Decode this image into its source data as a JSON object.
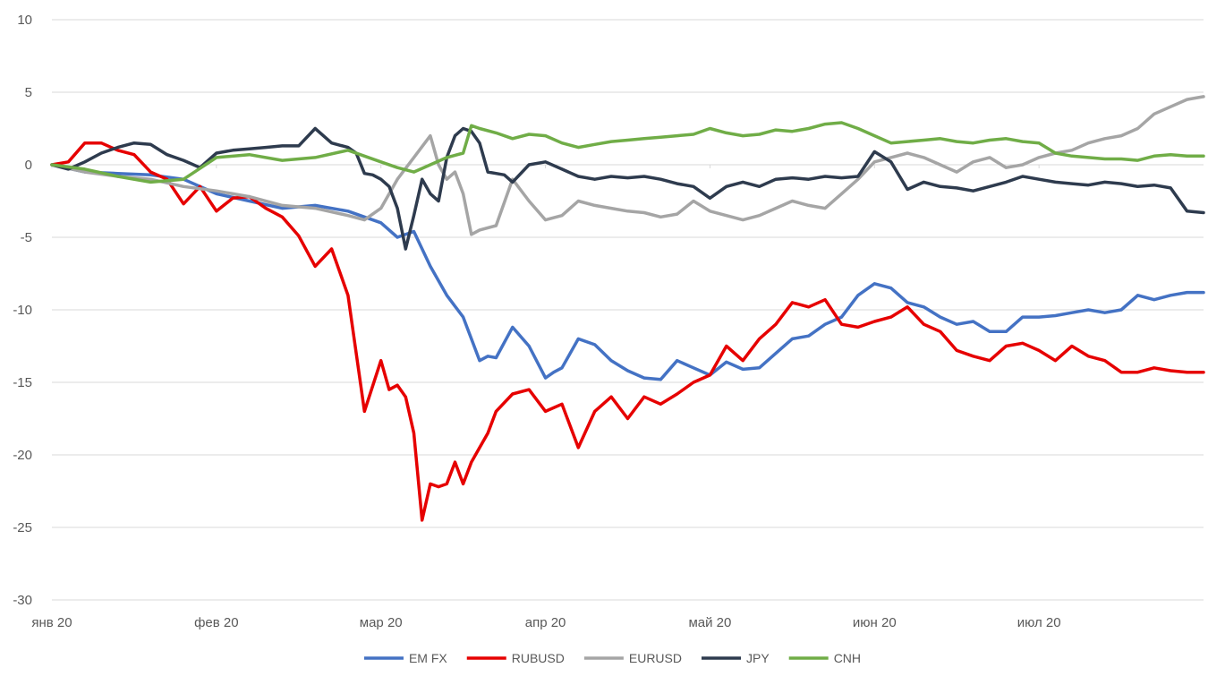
{
  "chart_data": {
    "type": "line",
    "title": "",
    "xlabel": "",
    "ylabel": "",
    "ylim": [
      -30,
      10
    ],
    "yticks": [
      10,
      5,
      0,
      -5,
      -10,
      -15,
      -20,
      -25,
      -30
    ],
    "y_tick_labels": [
      "10",
      "5",
      "0",
      "-5",
      "-10",
      "-15",
      "-20",
      "-25",
      "-30"
    ],
    "x_tick_labels": [
      "янв 20",
      "фев 20",
      "мар 20",
      "апр 20",
      "май 20",
      "июн 20",
      "июл 20"
    ],
    "x_tick_positions": [
      0,
      1,
      2,
      3,
      4,
      5,
      6
    ],
    "x_range": [
      0,
      7.0
    ],
    "grid": "horizontal",
    "legend_position": "bottom",
    "series": [
      {
        "name": "EM FX",
        "color": "#4472C4",
        "x": [
          0,
          0.2,
          0.4,
          0.6,
          0.8,
          1.0,
          1.2,
          1.4,
          1.6,
          1.8,
          2.0,
          2.1,
          2.2,
          2.3,
          2.4,
          2.5,
          2.6,
          2.65,
          2.7,
          2.8,
          2.9,
          3.0,
          3.05,
          3.1,
          3.2,
          3.3,
          3.4,
          3.5,
          3.6,
          3.7,
          3.8,
          3.9,
          4.0,
          4.1,
          4.2,
          4.3,
          4.4,
          4.5,
          4.6,
          4.7,
          4.8,
          4.9,
          5.0,
          5.1,
          5.2,
          5.3,
          5.4,
          5.5,
          5.6,
          5.7,
          5.8,
          5.9,
          6.0,
          6.1,
          6.2,
          6.3,
          6.4,
          6.5,
          6.6,
          6.7,
          6.8,
          6.9,
          7.0
        ],
        "y": [
          0,
          -0.5,
          -0.6,
          -0.7,
          -1.0,
          -2.0,
          -2.5,
          -3.0,
          -2.8,
          -3.2,
          -4.0,
          -5.0,
          -4.6,
          -7.0,
          -9.0,
          -10.5,
          -13.5,
          -13.2,
          -13.3,
          -11.2,
          -12.5,
          -14.7,
          -14.3,
          -14.0,
          -12.0,
          -12.4,
          -13.5,
          -14.2,
          -14.7,
          -14.8,
          -13.5,
          -14.0,
          -14.5,
          -13.6,
          -14.1,
          -14.0,
          -13.0,
          -12.0,
          -11.8,
          -11.0,
          -10.5,
          -9.0,
          -8.2,
          -8.5,
          -9.5,
          -9.8,
          -10.5,
          -11.0,
          -10.8,
          -11.5,
          -11.5,
          -10.5,
          -10.5,
          -10.4,
          -10.2,
          -10.0,
          -10.2,
          -10.0,
          -9.0,
          -9.3,
          -9.0,
          -8.8,
          -8.8
        ]
      },
      {
        "name": "RUBUSD",
        "color": "#E60000",
        "x": [
          0,
          0.1,
          0.2,
          0.3,
          0.4,
          0.5,
          0.6,
          0.7,
          0.8,
          0.9,
          1.0,
          1.1,
          1.2,
          1.3,
          1.4,
          1.5,
          1.6,
          1.7,
          1.8,
          1.9,
          2.0,
          2.05,
          2.1,
          2.15,
          2.2,
          2.25,
          2.3,
          2.35,
          2.4,
          2.45,
          2.5,
          2.55,
          2.6,
          2.65,
          2.7,
          2.8,
          2.9,
          3.0,
          3.1,
          3.2,
          3.3,
          3.4,
          3.5,
          3.6,
          3.7,
          3.8,
          3.9,
          4.0,
          4.1,
          4.2,
          4.3,
          4.4,
          4.5,
          4.6,
          4.7,
          4.8,
          4.9,
          5.0,
          5.1,
          5.2,
          5.3,
          5.4,
          5.5,
          5.6,
          5.7,
          5.8,
          5.9,
          6.0,
          6.1,
          6.2,
          6.3,
          6.4,
          6.5,
          6.6,
          6.7,
          6.8,
          6.9,
          7.0
        ],
        "y": [
          0,
          0.2,
          1.5,
          1.5,
          1.0,
          0.7,
          -0.5,
          -1.0,
          -2.7,
          -1.5,
          -3.2,
          -2.3,
          -2.2,
          -3.0,
          -3.6,
          -4.9,
          -7.0,
          -5.8,
          -9.0,
          -17.0,
          -13.5,
          -15.5,
          -15.2,
          -16.0,
          -18.5,
          -24.5,
          -22.0,
          -22.2,
          -22.0,
          -20.5,
          -22.0,
          -20.5,
          -19.5,
          -18.5,
          -17.0,
          -15.8,
          -15.5,
          -17.0,
          -16.5,
          -19.5,
          -17.0,
          -16.0,
          -17.5,
          -16.0,
          -16.5,
          -15.8,
          -15.0,
          -14.5,
          -12.5,
          -13.5,
          -12.0,
          -11.0,
          -9.5,
          -9.8,
          -9.3,
          -11.0,
          -11.2,
          -10.8,
          -10.5,
          -9.8,
          -11.0,
          -11.5,
          -12.8,
          -13.2,
          -13.5,
          -12.5,
          -12.3,
          -12.8,
          -13.5,
          -12.5,
          -13.2,
          -13.5,
          -14.3,
          -14.3,
          -14.0,
          -14.2,
          -14.3,
          -14.3
        ]
      },
      {
        "name": "EURUSD",
        "color": "#A5A5A5",
        "x": [
          0,
          0.2,
          0.4,
          0.6,
          0.8,
          1.0,
          1.2,
          1.4,
          1.6,
          1.8,
          1.9,
          2.0,
          2.1,
          2.2,
          2.3,
          2.35,
          2.4,
          2.45,
          2.5,
          2.55,
          2.6,
          2.7,
          2.8,
          2.9,
          3.0,
          3.1,
          3.2,
          3.3,
          3.4,
          3.5,
          3.6,
          3.7,
          3.8,
          3.9,
          4.0,
          4.1,
          4.2,
          4.3,
          4.4,
          4.5,
          4.6,
          4.7,
          4.8,
          4.9,
          5.0,
          5.1,
          5.2,
          5.3,
          5.4,
          5.5,
          5.6,
          5.7,
          5.8,
          5.9,
          6.0,
          6.1,
          6.2,
          6.3,
          6.4,
          6.5,
          6.6,
          6.7,
          6.8,
          6.9,
          7.0
        ],
        "y": [
          0,
          -0.5,
          -0.8,
          -1.0,
          -1.5,
          -1.8,
          -2.2,
          -2.8,
          -3.0,
          -3.5,
          -3.8,
          -3.0,
          -1.0,
          0.5,
          2.0,
          0.0,
          -1.0,
          -0.5,
          -2.0,
          -4.8,
          -4.5,
          -4.2,
          -1.0,
          -2.5,
          -3.8,
          -3.5,
          -2.5,
          -2.8,
          -3.0,
          -3.2,
          -3.3,
          -3.6,
          -3.4,
          -2.5,
          -3.2,
          -3.5,
          -3.8,
          -3.5,
          -3.0,
          -2.5,
          -2.8,
          -3.0,
          -2.0,
          -1.0,
          0.2,
          0.5,
          0.8,
          0.5,
          0.0,
          -0.5,
          0.2,
          0.5,
          -0.2,
          0.0,
          0.5,
          0.8,
          1.0,
          1.5,
          1.8,
          2.0,
          2.5,
          3.5,
          4.0,
          4.5,
          4.7
        ]
      },
      {
        "name": "JPY",
        "color": "#2E3B4E",
        "x": [
          0,
          0.1,
          0.2,
          0.3,
          0.4,
          0.5,
          0.6,
          0.7,
          0.8,
          0.9,
          1.0,
          1.1,
          1.2,
          1.3,
          1.4,
          1.5,
          1.6,
          1.7,
          1.8,
          1.85,
          1.9,
          1.95,
          2.0,
          2.05,
          2.1,
          2.15,
          2.2,
          2.25,
          2.3,
          2.35,
          2.4,
          2.45,
          2.5,
          2.55,
          2.6,
          2.65,
          2.7,
          2.75,
          2.8,
          2.9,
          3.0,
          3.1,
          3.2,
          3.3,
          3.4,
          3.5,
          3.6,
          3.7,
          3.8,
          3.9,
          4.0,
          4.1,
          4.2,
          4.3,
          4.4,
          4.5,
          4.6,
          4.7,
          4.8,
          4.9,
          5.0,
          5.1,
          5.2,
          5.3,
          5.4,
          5.5,
          5.6,
          5.7,
          5.8,
          5.9,
          6.0,
          6.1,
          6.2,
          6.3,
          6.4,
          6.5,
          6.6,
          6.7,
          6.8,
          6.9,
          7.0
        ],
        "y": [
          0,
          -0.3,
          0.2,
          0.8,
          1.2,
          1.5,
          1.4,
          0.7,
          0.3,
          -0.2,
          0.8,
          1.0,
          1.1,
          1.2,
          1.3,
          1.3,
          2.5,
          1.5,
          1.2,
          0.8,
          -0.6,
          -0.7,
          -1.0,
          -1.5,
          -3.0,
          -5.8,
          -3.5,
          -1.0,
          -2.0,
          -2.5,
          0.5,
          2.0,
          2.5,
          2.3,
          1.5,
          -0.5,
          -0.6,
          -0.7,
          -1.2,
          0.0,
          0.2,
          -0.3,
          -0.8,
          -1.0,
          -0.8,
          -0.9,
          -0.8,
          -1.0,
          -1.3,
          -1.5,
          -2.3,
          -1.5,
          -1.2,
          -1.5,
          -1.0,
          -0.9,
          -1.0,
          -0.8,
          -0.9,
          -0.8,
          0.9,
          0.2,
          -1.7,
          -1.2,
          -1.5,
          -1.6,
          -1.8,
          -1.5,
          -1.2,
          -0.8,
          -1.0,
          -1.2,
          -1.3,
          -1.4,
          -1.2,
          -1.3,
          -1.5,
          -1.4,
          -1.6,
          -3.2,
          -3.3
        ]
      },
      {
        "name": "CNH",
        "color": "#70AD47",
        "x": [
          0,
          0.2,
          0.4,
          0.6,
          0.8,
          1.0,
          1.2,
          1.4,
          1.6,
          1.8,
          2.0,
          2.1,
          2.2,
          2.3,
          2.4,
          2.5,
          2.55,
          2.6,
          2.7,
          2.8,
          2.9,
          3.0,
          3.1,
          3.2,
          3.3,
          3.4,
          3.5,
          3.6,
          3.7,
          3.8,
          3.9,
          4.0,
          4.1,
          4.2,
          4.3,
          4.4,
          4.5,
          4.6,
          4.7,
          4.8,
          4.9,
          5.0,
          5.1,
          5.2,
          5.3,
          5.4,
          5.5,
          5.6,
          5.7,
          5.8,
          5.9,
          6.0,
          6.1,
          6.2,
          6.3,
          6.4,
          6.5,
          6.6,
          6.7,
          6.8,
          6.9,
          7.0
        ],
        "y": [
          0,
          -0.3,
          -0.8,
          -1.2,
          -1.0,
          0.5,
          0.7,
          0.3,
          0.5,
          1.0,
          0.2,
          -0.2,
          -0.5,
          0.0,
          0.5,
          0.8,
          2.7,
          2.5,
          2.2,
          1.8,
          2.1,
          2.0,
          1.5,
          1.2,
          1.4,
          1.6,
          1.7,
          1.8,
          1.9,
          2.0,
          2.1,
          2.5,
          2.2,
          2.0,
          2.1,
          2.4,
          2.3,
          2.5,
          2.8,
          2.9,
          2.5,
          2.0,
          1.5,
          1.6,
          1.7,
          1.8,
          1.6,
          1.5,
          1.7,
          1.8,
          1.6,
          1.5,
          0.8,
          0.6,
          0.5,
          0.4,
          0.4,
          0.3,
          0.6,
          0.7,
          0.6,
          0.6
        ]
      }
    ]
  }
}
